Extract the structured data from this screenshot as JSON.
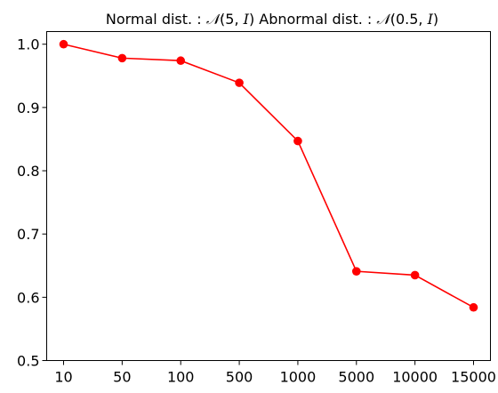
{
  "chart_data": {
    "type": "line",
    "title": {
      "prefix": "Normal dist. : ",
      "normal_symbol": "𝒩",
      "normal_args_a": "(5, ",
      "normal_args_var": "I",
      "normal_args_b": ")",
      "middle": " Abnormal dist. : ",
      "abnormal_symbol": "𝒩",
      "abnormal_args_a": "(0.5, ",
      "abnormal_args_var": "I",
      "abnormal_args_b": ")"
    },
    "xlabel": "",
    "ylabel": "",
    "categories": [
      "10",
      "50",
      "100",
      "500",
      "1000",
      "5000",
      "10000",
      "15000"
    ],
    "values": [
      1.0,
      0.978,
      0.974,
      0.939,
      0.847,
      0.641,
      0.635,
      0.584
    ],
    "ylim": [
      0.5,
      1.02
    ],
    "yticks": [
      "0.5",
      "0.6",
      "0.7",
      "0.8",
      "0.9",
      "1.0"
    ],
    "grid": false,
    "color": "#ff0000"
  }
}
